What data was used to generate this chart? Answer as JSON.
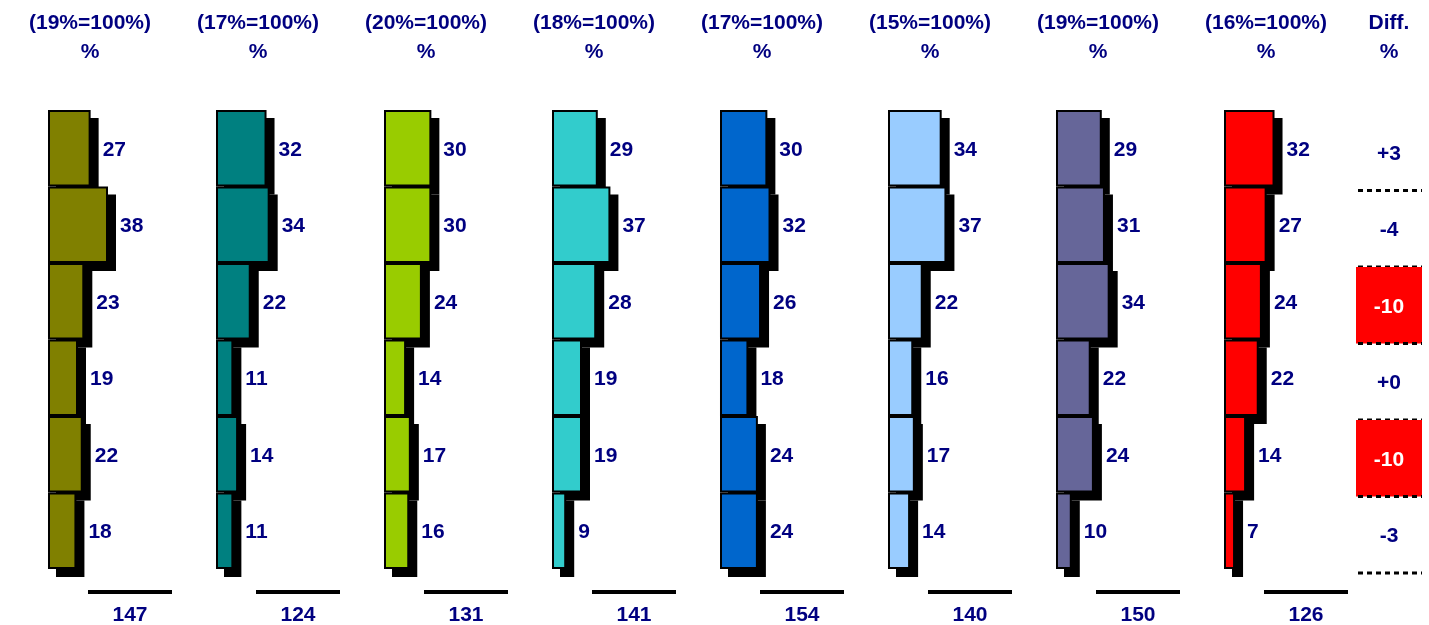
{
  "chart_data": [
    {
      "type": "bar",
      "orientation": "horizontal",
      "title": "(19%=100%)",
      "subtitle": "%",
      "categories": [
        null,
        null,
        null,
        null,
        null,
        null
      ],
      "values": [
        27,
        38,
        23,
        19,
        22,
        18
      ],
      "color": "#808000",
      "data_labels": true,
      "annotations": [
        "147"
      ]
    },
    {
      "type": "bar",
      "orientation": "horizontal",
      "title": "(17%=100%)",
      "subtitle": "%",
      "categories": [
        null,
        null,
        null,
        null,
        null,
        null
      ],
      "values": [
        32,
        34,
        22,
        11,
        14,
        11
      ],
      "color": "#008080",
      "data_labels": true,
      "annotations": [
        "124"
      ]
    },
    {
      "type": "bar",
      "orientation": "horizontal",
      "title": "(20%=100%)",
      "subtitle": "%",
      "categories": [
        null,
        null,
        null,
        null,
        null,
        null
      ],
      "values": [
        30,
        30,
        24,
        14,
        17,
        16
      ],
      "color": "#99cc00",
      "data_labels": true,
      "annotations": [
        "131"
      ]
    },
    {
      "type": "bar",
      "orientation": "horizontal",
      "title": "(18%=100%)",
      "subtitle": "%",
      "categories": [
        null,
        null,
        null,
        null,
        null,
        null
      ],
      "values": [
        29,
        37,
        28,
        19,
        19,
        9
      ],
      "color": "#33cccc",
      "data_labels": true,
      "annotations": [
        "141"
      ]
    },
    {
      "type": "bar",
      "orientation": "horizontal",
      "title": "(17%=100%)",
      "subtitle": "%",
      "categories": [
        null,
        null,
        null,
        null,
        null,
        null
      ],
      "values": [
        30,
        32,
        26,
        18,
        24,
        24
      ],
      "color": "#0066cc",
      "data_labels": true,
      "annotations": [
        "154"
      ]
    },
    {
      "type": "bar",
      "orientation": "horizontal",
      "title": "(15%=100%)",
      "subtitle": "%",
      "categories": [
        null,
        null,
        null,
        null,
        null,
        null
      ],
      "values": [
        34,
        37,
        22,
        16,
        17,
        14
      ],
      "color": "#99ccff",
      "data_labels": true,
      "annotations": [
        "140"
      ]
    },
    {
      "type": "bar",
      "orientation": "horizontal",
      "title": "(19%=100%)",
      "subtitle": "%",
      "categories": [
        null,
        null,
        null,
        null,
        null,
        null
      ],
      "values": [
        29,
        31,
        34,
        22,
        24,
        10
      ],
      "color": "#666699",
      "data_labels": true,
      "annotations": [
        "150"
      ]
    },
    {
      "type": "bar",
      "orientation": "horizontal",
      "title": "(16%=100%)",
      "subtitle": "%",
      "categories": [
        null,
        null,
        null,
        null,
        null,
        null
      ],
      "values": [
        32,
        27,
        24,
        22,
        14,
        7
      ],
      "color": "#ff0000",
      "data_labels": true,
      "annotations": [
        "126"
      ]
    },
    {
      "type": "other",
      "title": "Diff.",
      "subtitle": "%",
      "categories": [
        null,
        null,
        null,
        null,
        null,
        null
      ],
      "values": [
        3,
        -4,
        -10,
        0,
        -10,
        -3
      ],
      "value_labels": [
        "+3",
        "-4",
        "-10",
        "+0",
        "-10",
        "-3"
      ],
      "colors": [
        "#ffffff",
        "#ffffff",
        "#ff0000",
        "#ffffff",
        "#ff0000",
        "#ffffff"
      ]
    }
  ]
}
